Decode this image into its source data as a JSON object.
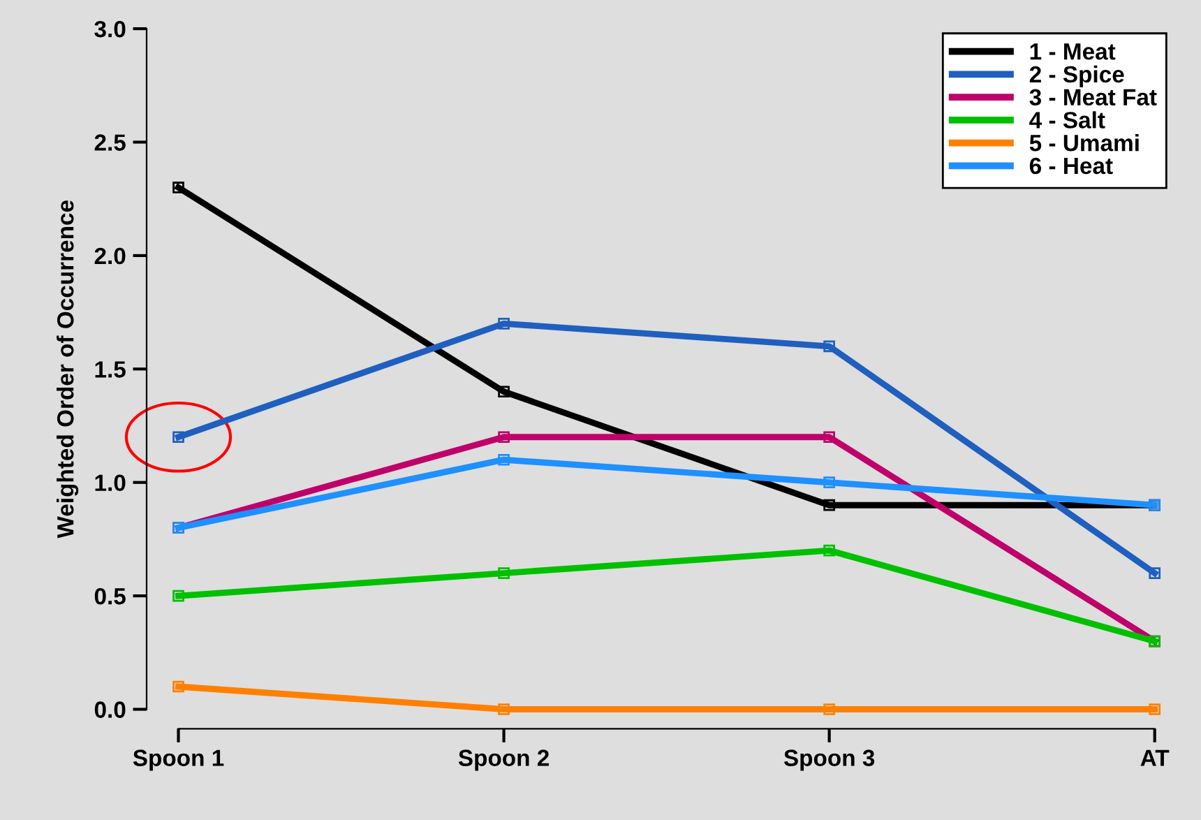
{
  "chart_data": {
    "type": "line",
    "ylabel": "Weighted Order of Occurrence",
    "categories": [
      "Spoon 1",
      "Spoon 2",
      "Spoon 3",
      "AT"
    ],
    "series": [
      {
        "name": "1 - Meat",
        "color": "#000000",
        "values": [
          2.3,
          1.4,
          0.9,
          0.9
        ]
      },
      {
        "name": "2 - Spice",
        "color": "#1f5fbf",
        "values": [
          1.2,
          1.7,
          1.6,
          0.6
        ]
      },
      {
        "name": "3 - Meat Fat",
        "color": "#c0006a",
        "values": [
          0.8,
          1.2,
          1.2,
          0.3
        ]
      },
      {
        "name": "4 - Salt",
        "color": "#00c000",
        "values": [
          0.5,
          0.6,
          0.7,
          0.3
        ]
      },
      {
        "name": "5 - Umami",
        "color": "#ff8000",
        "values": [
          0.1,
          0.0,
          0.0,
          0.0
        ]
      },
      {
        "name": "6 - Heat",
        "color": "#1e90ff",
        "values": [
          0.8,
          1.1,
          1.0,
          0.9
        ]
      }
    ],
    "ylim": [
      0,
      3
    ],
    "yticks": [
      {
        "value": 0,
        "label": "0.0"
      },
      {
        "value": 0.5,
        "label": "0.5"
      },
      {
        "value": 1,
        "label": "1.0"
      },
      {
        "value": 1.5,
        "label": "1.5"
      },
      {
        "value": 2,
        "label": "2.0"
      },
      {
        "value": 2.5,
        "label": "2.5"
      },
      {
        "value": 3,
        "label": "3.0"
      }
    ],
    "grid": false,
    "legend": "top right",
    "marker": "square",
    "line_style": "solid"
  }
}
